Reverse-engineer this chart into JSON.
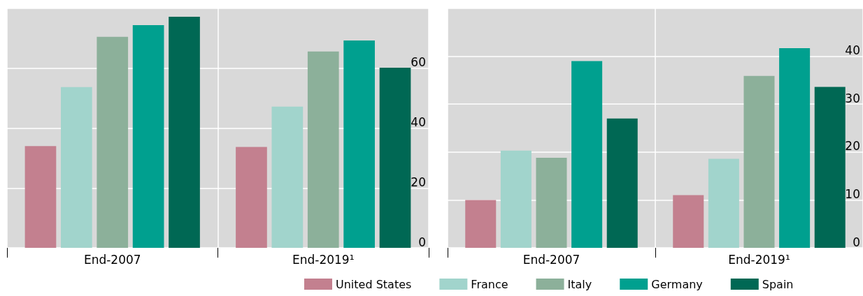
{
  "chart_data": [
    {
      "type": "bar",
      "categories": [
        "End-2007",
        "End-2019¹"
      ],
      "series": [
        {
          "name": "United States",
          "color": "#c3808f",
          "values": [
            34,
            33.7
          ]
        },
        {
          "name": "France",
          "color": "#a1d4cc",
          "values": [
            53.7,
            47.2
          ]
        },
        {
          "name": "Italy",
          "color": "#8cb09a",
          "values": [
            70.5,
            65.6
          ]
        },
        {
          "name": "Germany",
          "color": "#00a08f",
          "values": [
            74.4,
            69.3
          ]
        },
        {
          "name": "Spain",
          "color": "#006854",
          "values": [
            77.2,
            60.2
          ]
        }
      ],
      "ylim": [
        0,
        80
      ],
      "yticks": [
        0,
        20,
        40,
        60
      ],
      "grid": true,
      "legend": "bottom"
    },
    {
      "type": "bar",
      "categories": [
        "End-2007",
        "End-2019¹"
      ],
      "series": [
        {
          "color": "#c3808f",
          "values": [
            10,
            11
          ]
        },
        {
          "color": "#a1d4cc",
          "values": [
            20.3,
            18.6
          ]
        },
        {
          "color": "#8cb09a",
          "values": [
            18.8,
            35.9
          ]
        },
        {
          "color": "#00a08f",
          "values": [
            39,
            41.7
          ]
        },
        {
          "color": "#006854",
          "values": [
            27,
            33.6
          ]
        }
      ],
      "ylim": [
        0,
        50
      ],
      "yticks": [
        0,
        10,
        20,
        30,
        40
      ],
      "grid": true
    }
  ]
}
